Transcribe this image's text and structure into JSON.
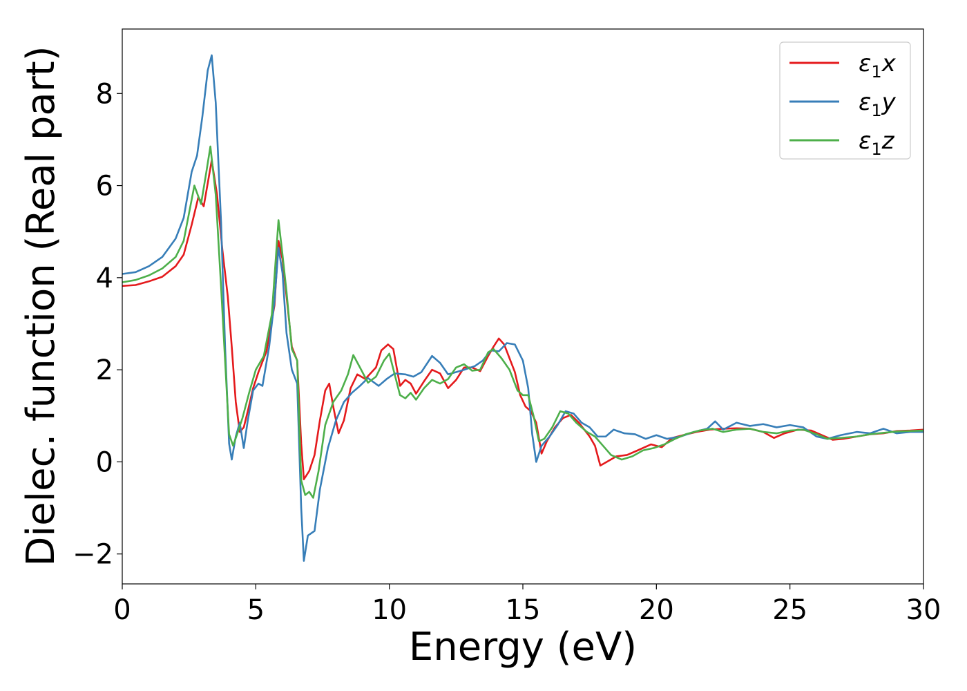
{
  "chart_data": {
    "type": "line",
    "title": "",
    "xlabel": "Energy (eV)",
    "ylabel": "Dielec. function (Real part)",
    "xlim": [
      0,
      30
    ],
    "ylim": [
      -2.65,
      9.4
    ],
    "xticks": [
      0,
      5,
      10,
      15,
      20,
      25,
      30
    ],
    "xtick_labels": [
      "0",
      "5",
      "10",
      "15",
      "20",
      "25",
      "30"
    ],
    "yticks": [
      -2,
      0,
      2,
      4,
      6,
      8
    ],
    "ytick_labels": [
      "−2",
      "0",
      "2",
      "4",
      "6",
      "8"
    ],
    "grid": false,
    "legend_position": "top-right",
    "series": [
      {
        "name": "ε₁x",
        "legend_base": "ε",
        "legend_sub": "1",
        "legend_tail": "x",
        "color": "#e41a1c",
        "points": [
          [
            0,
            3.82
          ],
          [
            0.5,
            3.84
          ],
          [
            1,
            3.92
          ],
          [
            1.5,
            4.02
          ],
          [
            2,
            4.25
          ],
          [
            2.3,
            4.5
          ],
          [
            2.6,
            5.15
          ],
          [
            2.85,
            5.75
          ],
          [
            3.05,
            5.55
          ],
          [
            3.35,
            6.55
          ],
          [
            3.55,
            5.8
          ],
          [
            3.75,
            4.6
          ],
          [
            3.95,
            3.6
          ],
          [
            4.1,
            2.5
          ],
          [
            4.25,
            1.3
          ],
          [
            4.4,
            0.65
          ],
          [
            4.55,
            0.75
          ],
          [
            4.7,
            1.1
          ],
          [
            4.9,
            1.6
          ],
          [
            5.1,
            1.95
          ],
          [
            5.4,
            2.4
          ],
          [
            5.7,
            3.4
          ],
          [
            5.85,
            4.8
          ],
          [
            6.0,
            4.4
          ],
          [
            6.15,
            3.6
          ],
          [
            6.35,
            2.5
          ],
          [
            6.55,
            2.2
          ],
          [
            6.7,
            0.4
          ],
          [
            6.8,
            -0.38
          ],
          [
            7.0,
            -0.2
          ],
          [
            7.2,
            0.15
          ],
          [
            7.4,
            0.9
          ],
          [
            7.6,
            1.55
          ],
          [
            7.75,
            1.7
          ],
          [
            7.9,
            1.2
          ],
          [
            8.1,
            0.62
          ],
          [
            8.3,
            0.9
          ],
          [
            8.55,
            1.6
          ],
          [
            8.8,
            1.9
          ],
          [
            9.1,
            1.8
          ],
          [
            9.5,
            2.05
          ],
          [
            9.7,
            2.42
          ],
          [
            9.95,
            2.55
          ],
          [
            10.15,
            2.45
          ],
          [
            10.4,
            1.65
          ],
          [
            10.6,
            1.78
          ],
          [
            10.8,
            1.7
          ],
          [
            11.0,
            1.48
          ],
          [
            11.3,
            1.75
          ],
          [
            11.6,
            2.0
          ],
          [
            11.9,
            1.92
          ],
          [
            12.2,
            1.6
          ],
          [
            12.5,
            1.78
          ],
          [
            12.8,
            2.05
          ],
          [
            13.1,
            2.05
          ],
          [
            13.4,
            1.97
          ],
          [
            13.7,
            2.3
          ],
          [
            13.9,
            2.5
          ],
          [
            14.1,
            2.68
          ],
          [
            14.3,
            2.55
          ],
          [
            14.5,
            2.25
          ],
          [
            14.7,
            1.95
          ],
          [
            14.9,
            1.45
          ],
          [
            15.1,
            1.2
          ],
          [
            15.3,
            1.1
          ],
          [
            15.5,
            0.85
          ],
          [
            15.7,
            0.18
          ],
          [
            15.9,
            0.45
          ],
          [
            16.2,
            0.75
          ],
          [
            16.5,
            0.95
          ],
          [
            16.8,
            1.02
          ],
          [
            17.1,
            0.85
          ],
          [
            17.5,
            0.55
          ],
          [
            17.7,
            0.35
          ],
          [
            17.9,
            -0.08
          ],
          [
            18.2,
            0.02
          ],
          [
            18.5,
            0.12
          ],
          [
            18.9,
            0.15
          ],
          [
            19.3,
            0.25
          ],
          [
            19.8,
            0.38
          ],
          [
            20.2,
            0.32
          ],
          [
            20.6,
            0.52
          ],
          [
            21.0,
            0.58
          ],
          [
            21.5,
            0.65
          ],
          [
            22.0,
            0.7
          ],
          [
            22.5,
            0.72
          ],
          [
            23.0,
            0.73
          ],
          [
            23.5,
            0.72
          ],
          [
            24.0,
            0.65
          ],
          [
            24.4,
            0.52
          ],
          [
            24.8,
            0.62
          ],
          [
            25.3,
            0.7
          ],
          [
            25.8,
            0.68
          ],
          [
            26.2,
            0.58
          ],
          [
            26.6,
            0.48
          ],
          [
            27.0,
            0.5
          ],
          [
            27.5,
            0.55
          ],
          [
            28.0,
            0.6
          ],
          [
            28.5,
            0.62
          ],
          [
            29.0,
            0.67
          ],
          [
            29.5,
            0.68
          ],
          [
            30,
            0.7
          ]
        ]
      },
      {
        "name": "ε₁y",
        "legend_base": "ε",
        "legend_sub": "1",
        "legend_tail": "y",
        "color": "#377eb8",
        "points": [
          [
            0,
            4.08
          ],
          [
            0.5,
            4.12
          ],
          [
            1,
            4.25
          ],
          [
            1.5,
            4.45
          ],
          [
            2,
            4.85
          ],
          [
            2.3,
            5.3
          ],
          [
            2.6,
            6.3
          ],
          [
            2.8,
            6.65
          ],
          [
            3.0,
            7.5
          ],
          [
            3.2,
            8.5
          ],
          [
            3.35,
            8.83
          ],
          [
            3.5,
            7.8
          ],
          [
            3.7,
            5.2
          ],
          [
            3.85,
            2.5
          ],
          [
            4.0,
            0.4
          ],
          [
            4.1,
            0.05
          ],
          [
            4.25,
            0.55
          ],
          [
            4.4,
            0.85
          ],
          [
            4.55,
            0.3
          ],
          [
            4.7,
            0.9
          ],
          [
            4.9,
            1.55
          ],
          [
            5.1,
            1.7
          ],
          [
            5.25,
            1.65
          ],
          [
            5.5,
            2.5
          ],
          [
            5.7,
            3.5
          ],
          [
            5.85,
            4.65
          ],
          [
            6.0,
            4.1
          ],
          [
            6.15,
            2.8
          ],
          [
            6.35,
            2.0
          ],
          [
            6.55,
            1.7
          ],
          [
            6.7,
            -1.0
          ],
          [
            6.8,
            -2.15
          ],
          [
            6.95,
            -1.6
          ],
          [
            7.2,
            -1.5
          ],
          [
            7.4,
            -0.6
          ],
          [
            7.7,
            0.3
          ],
          [
            8.0,
            0.9
          ],
          [
            8.3,
            1.3
          ],
          [
            8.6,
            1.5
          ],
          [
            8.9,
            1.65
          ],
          [
            9.2,
            1.82
          ],
          [
            9.6,
            1.65
          ],
          [
            9.9,
            1.8
          ],
          [
            10.2,
            1.92
          ],
          [
            10.6,
            1.9
          ],
          [
            10.9,
            1.85
          ],
          [
            11.2,
            1.95
          ],
          [
            11.6,
            2.3
          ],
          [
            11.9,
            2.15
          ],
          [
            12.2,
            1.9
          ],
          [
            12.5,
            1.95
          ],
          [
            12.8,
            2.0
          ],
          [
            13.2,
            2.08
          ],
          [
            13.5,
            2.2
          ],
          [
            13.8,
            2.42
          ],
          [
            14.1,
            2.4
          ],
          [
            14.4,
            2.58
          ],
          [
            14.7,
            2.55
          ],
          [
            15.0,
            2.2
          ],
          [
            15.2,
            1.6
          ],
          [
            15.35,
            0.6
          ],
          [
            15.5,
            0.0
          ],
          [
            15.7,
            0.35
          ],
          [
            16.0,
            0.55
          ],
          [
            16.3,
            0.8
          ],
          [
            16.6,
            1.1
          ],
          [
            16.9,
            1.05
          ],
          [
            17.2,
            0.85
          ],
          [
            17.5,
            0.75
          ],
          [
            17.8,
            0.55
          ],
          [
            18.1,
            0.55
          ],
          [
            18.4,
            0.7
          ],
          [
            18.8,
            0.62
          ],
          [
            19.2,
            0.6
          ],
          [
            19.6,
            0.5
          ],
          [
            20.0,
            0.58
          ],
          [
            20.4,
            0.5
          ],
          [
            20.9,
            0.55
          ],
          [
            21.4,
            0.65
          ],
          [
            21.9,
            0.72
          ],
          [
            22.2,
            0.88
          ],
          [
            22.5,
            0.7
          ],
          [
            23.0,
            0.85
          ],
          [
            23.5,
            0.78
          ],
          [
            24.0,
            0.82
          ],
          [
            24.5,
            0.75
          ],
          [
            25.0,
            0.8
          ],
          [
            25.5,
            0.75
          ],
          [
            26.0,
            0.55
          ],
          [
            26.4,
            0.5
          ],
          [
            26.9,
            0.58
          ],
          [
            27.5,
            0.65
          ],
          [
            28.0,
            0.62
          ],
          [
            28.5,
            0.72
          ],
          [
            29.0,
            0.62
          ],
          [
            29.5,
            0.65
          ],
          [
            30,
            0.65
          ]
        ]
      },
      {
        "name": "ε₁z",
        "legend_base": "ε",
        "legend_sub": "1",
        "legend_tail": "z",
        "color": "#4daf4a",
        "points": [
          [
            0,
            3.9
          ],
          [
            0.5,
            3.95
          ],
          [
            1,
            4.05
          ],
          [
            1.5,
            4.2
          ],
          [
            2,
            4.45
          ],
          [
            2.3,
            4.8
          ],
          [
            2.5,
            5.4
          ],
          [
            2.7,
            6.0
          ],
          [
            2.95,
            5.6
          ],
          [
            3.15,
            6.3
          ],
          [
            3.3,
            6.85
          ],
          [
            3.5,
            5.8
          ],
          [
            3.7,
            3.8
          ],
          [
            3.85,
            2.2
          ],
          [
            4.0,
            0.6
          ],
          [
            4.15,
            0.35
          ],
          [
            4.3,
            0.6
          ],
          [
            4.5,
            0.95
          ],
          [
            4.75,
            1.5
          ],
          [
            5.0,
            2.0
          ],
          [
            5.3,
            2.3
          ],
          [
            5.6,
            3.2
          ],
          [
            5.85,
            5.25
          ],
          [
            6.0,
            4.5
          ],
          [
            6.15,
            3.7
          ],
          [
            6.35,
            2.45
          ],
          [
            6.55,
            2.2
          ],
          [
            6.7,
            -0.4
          ],
          [
            6.85,
            -0.72
          ],
          [
            7.0,
            -0.65
          ],
          [
            7.15,
            -0.78
          ],
          [
            7.35,
            -0.2
          ],
          [
            7.6,
            0.8
          ],
          [
            7.9,
            1.3
          ],
          [
            8.2,
            1.55
          ],
          [
            8.45,
            1.9
          ],
          [
            8.65,
            2.32
          ],
          [
            8.9,
            2.05
          ],
          [
            9.2,
            1.72
          ],
          [
            9.5,
            1.85
          ],
          [
            9.8,
            2.2
          ],
          [
            10.0,
            2.35
          ],
          [
            10.2,
            1.9
          ],
          [
            10.4,
            1.45
          ],
          [
            10.6,
            1.38
          ],
          [
            10.8,
            1.5
          ],
          [
            11.0,
            1.35
          ],
          [
            11.3,
            1.6
          ],
          [
            11.6,
            1.78
          ],
          [
            11.9,
            1.7
          ],
          [
            12.2,
            1.8
          ],
          [
            12.5,
            2.05
          ],
          [
            12.8,
            2.12
          ],
          [
            13.1,
            1.98
          ],
          [
            13.4,
            2.0
          ],
          [
            13.7,
            2.38
          ],
          [
            13.9,
            2.45
          ],
          [
            14.2,
            2.25
          ],
          [
            14.5,
            2.0
          ],
          [
            14.8,
            1.55
          ],
          [
            15.0,
            1.45
          ],
          [
            15.2,
            1.45
          ],
          [
            15.4,
            1.0
          ],
          [
            15.6,
            0.45
          ],
          [
            15.8,
            0.5
          ],
          [
            16.1,
            0.75
          ],
          [
            16.4,
            1.1
          ],
          [
            16.7,
            1.05
          ],
          [
            17.0,
            0.85
          ],
          [
            17.4,
            0.65
          ],
          [
            17.7,
            0.55
          ],
          [
            18.0,
            0.35
          ],
          [
            18.3,
            0.15
          ],
          [
            18.7,
            0.05
          ],
          [
            19.1,
            0.12
          ],
          [
            19.5,
            0.25
          ],
          [
            19.9,
            0.3
          ],
          [
            20.3,
            0.38
          ],
          [
            20.7,
            0.5
          ],
          [
            21.1,
            0.6
          ],
          [
            21.6,
            0.68
          ],
          [
            22.1,
            0.72
          ],
          [
            22.5,
            0.65
          ],
          [
            23.0,
            0.7
          ],
          [
            23.5,
            0.72
          ],
          [
            24.0,
            0.65
          ],
          [
            24.5,
            0.62
          ],
          [
            25.0,
            0.68
          ],
          [
            25.5,
            0.7
          ],
          [
            26.0,
            0.6
          ],
          [
            26.4,
            0.5
          ],
          [
            26.9,
            0.52
          ],
          [
            27.5,
            0.55
          ],
          [
            28.0,
            0.6
          ],
          [
            28.5,
            0.63
          ],
          [
            29.0,
            0.66
          ],
          [
            29.5,
            0.67
          ],
          [
            30,
            0.68
          ]
        ]
      }
    ]
  }
}
